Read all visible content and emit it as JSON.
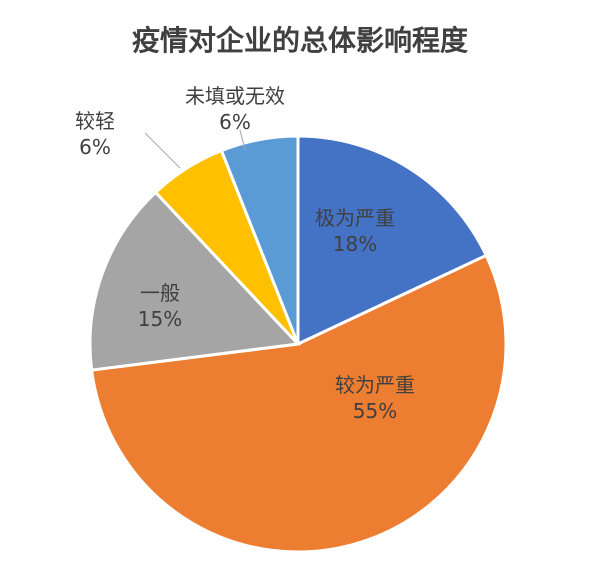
{
  "chart_data": {
    "type": "pie",
    "title": "疫情对企业的总体影响程度",
    "start": "12 o'clock, clockwise",
    "slices": [
      {
        "label": "极为严重",
        "value": 18,
        "value_label": "18%",
        "color": "#4472C4"
      },
      {
        "label": "较为严重",
        "value": 55,
        "value_label": "55%",
        "color": "#ED7D31"
      },
      {
        "label": "一般",
        "value": 15,
        "value_label": "15%",
        "color": "#A5A5A5"
      },
      {
        "label": "较轻",
        "value": 6,
        "value_label": "6%",
        "color": "#FFC000"
      },
      {
        "label": "未填或无效",
        "value": 6,
        "value_label": "6%",
        "color": "#5B9BD5"
      }
    ]
  }
}
